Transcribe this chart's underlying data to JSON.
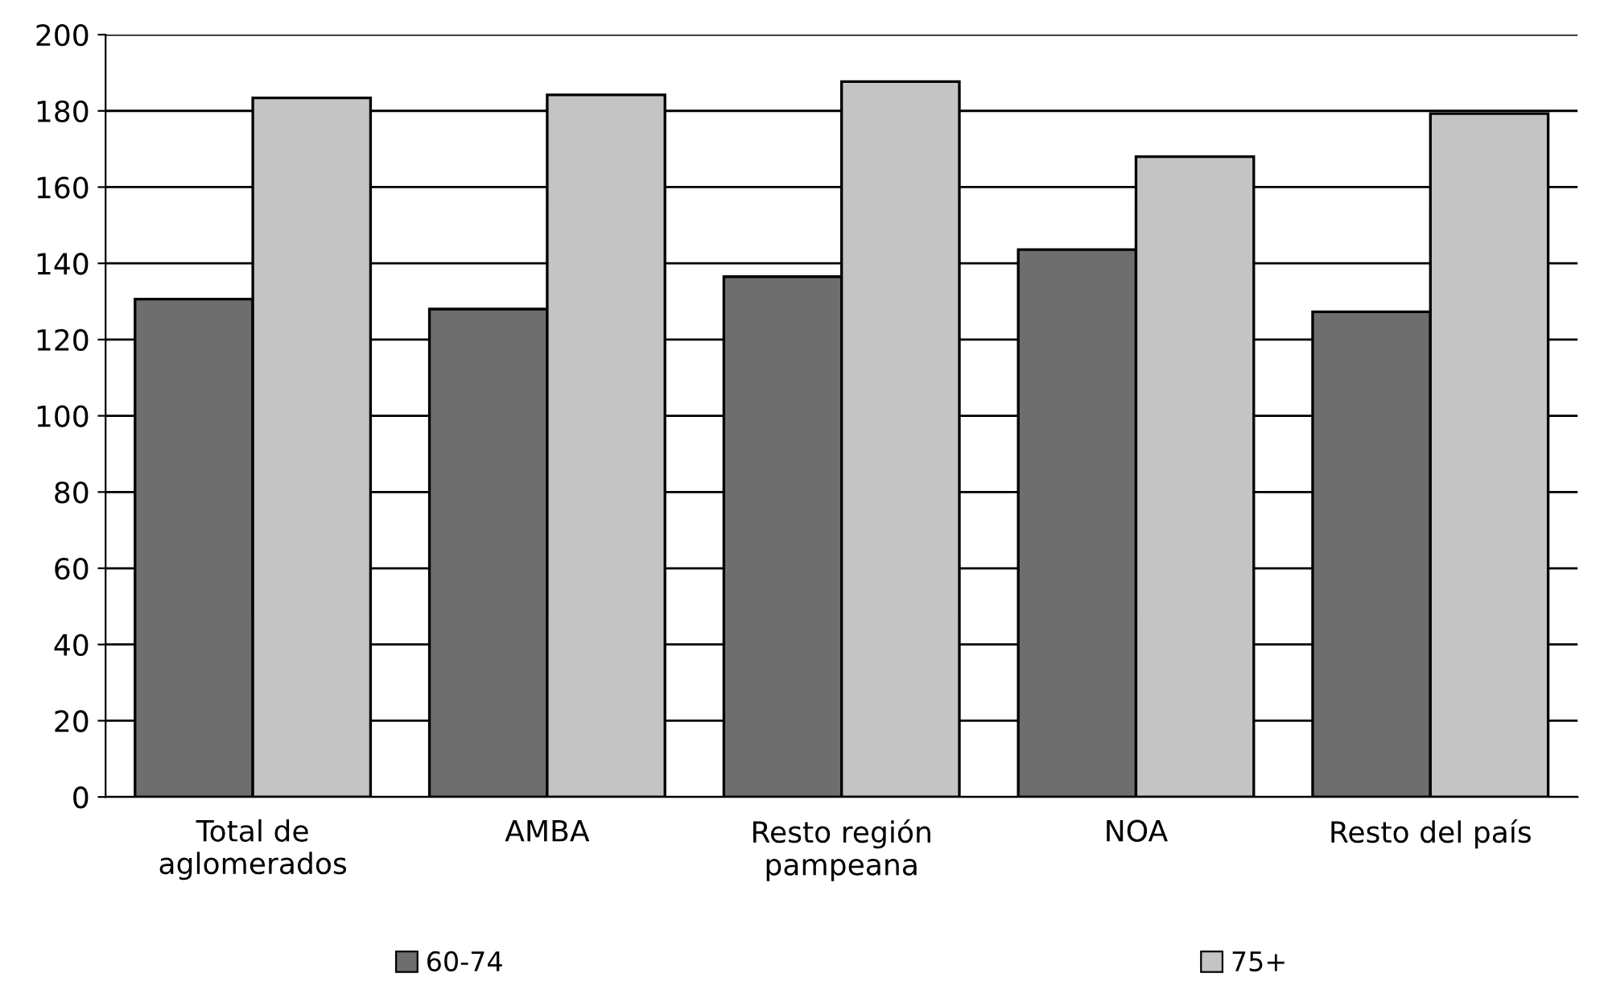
{
  "chart_data": {
    "type": "bar",
    "categories": [
      "Total de\naglomerados",
      "AMBA",
      "Resto región\npampeana",
      "NOA",
      "Resto del país"
    ],
    "series": [
      {
        "name": "60-74",
        "color": "#6e6e6e",
        "values": [
          130.6,
          128,
          136.5,
          143.6,
          127.3
        ]
      },
      {
        "name": "75+",
        "color": "#c4c4c4",
        "values": [
          183.4,
          184.2,
          187.7,
          168,
          179.3
        ]
      }
    ],
    "ylim": [
      0,
      200
    ],
    "yticks": [
      0,
      20,
      40,
      60,
      80,
      100,
      120,
      140,
      160,
      180,
      200
    ],
    "grid": "y",
    "legend": "bottom"
  }
}
